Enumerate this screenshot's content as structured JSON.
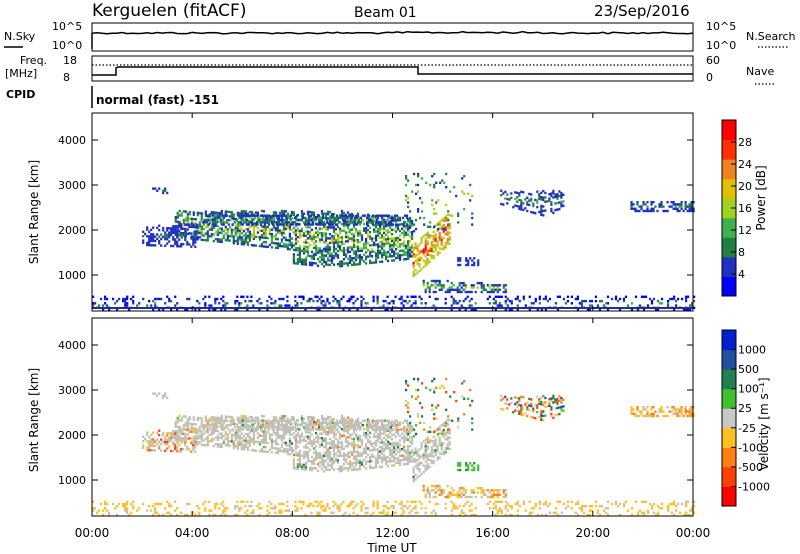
{
  "header": {
    "station": "Kerguelen (fitACF)",
    "beam": "Beam 01",
    "date": "23/Sep/2016"
  },
  "top_panels": {
    "nsky": {
      "label": "N.Sky",
      "yticks": [
        "10^5",
        "10^0"
      ],
      "right_label": "N.Search",
      "right_yticks": [
        "10^5",
        "10^0"
      ]
    },
    "freq": {
      "label_line1": "Freq.",
      "label_line2": "[MHz]",
      "yticks": [
        "18",
        "8"
      ],
      "right_label": "Nave",
      "right_yticks": [
        "60",
        "0"
      ]
    },
    "cpid": {
      "label": "CPID",
      "text": "normal (fast) -151"
    }
  },
  "chart_data": [
    {
      "type": "heatmap",
      "title": "",
      "xlabel": "",
      "ylabel": "Slant Range [km]",
      "yticks": [
        "1000",
        "2000",
        "3000",
        "4000"
      ],
      "ylim": [
        200,
        4600
      ],
      "xlim": [
        "00:00",
        "24:00"
      ],
      "colorbar": {
        "label": "Power [dB]",
        "ticks": [
          "4",
          "8",
          "12",
          "16",
          "20",
          "24",
          "28"
        ],
        "range": [
          0,
          32
        ],
        "colors": [
          "#0000ff",
          "#2030c0",
          "#208040",
          "#40b050",
          "#a0d020",
          "#e0c000",
          "#f08020",
          "#ff3000",
          "#ff0000"
        ]
      }
    },
    {
      "type": "heatmap",
      "title": "",
      "xlabel": "Time UT",
      "ylabel": "Slant Range [km]",
      "yticks": [
        "1000",
        "2000",
        "3000",
        "4000"
      ],
      "ylim": [
        200,
        4600
      ],
      "xticks": [
        "00:00",
        "04:00",
        "08:00",
        "12:00",
        "16:00",
        "20:00",
        "00:00"
      ],
      "colorbar": {
        "label": "Velocity [m s⁻¹]",
        "ticks": [
          "1000",
          "500",
          "100",
          "25",
          "-25",
          "-100",
          "-500",
          "-1000"
        ],
        "colors": [
          "#0020d0",
          "#2050a0",
          "#208050",
          "#40c030",
          "#c8c8c8",
          "#ffc020",
          "#ff8010",
          "#ff4000",
          "#ff0000"
        ]
      }
    }
  ],
  "colors": {
    "gray_scatter": "#c0c0b8"
  }
}
